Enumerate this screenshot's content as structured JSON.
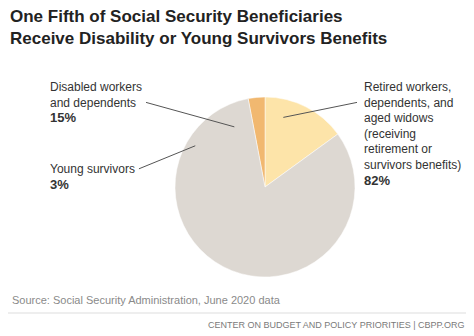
{
  "chart_data": {
    "type": "pie",
    "title": "One Fifth of Social Security Beneficiaries Receive Disability or Young Survivors Benefits",
    "categories": [
      "Disabled workers and dependents",
      "Young survivors",
      "Retired workers, dependents, and aged widows (receiving retirement or survivors benefits)"
    ],
    "values": [
      15,
      3,
      82
    ],
    "value_labels": [
      "15%",
      "3%",
      "82%"
    ],
    "colors": [
      "#fde4a9",
      "#f1b870",
      "#ddd8d2"
    ],
    "data_labels": true,
    "annotations": [
      "Source: Social Security Administration, June 2020 data",
      "CENTER ON BUDGET AND POLICY PRIORITIES | CBPP.ORG"
    ]
  }
}
